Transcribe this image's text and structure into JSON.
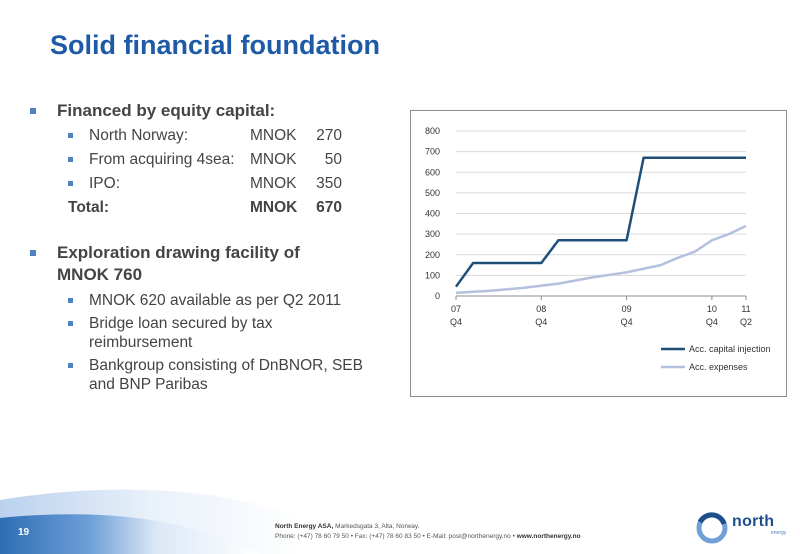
{
  "title": "Solid financial foundation",
  "bullets": {
    "equity_heading": "Financed by equity capital:",
    "equity_items": [
      {
        "label": "North Norway:",
        "unit": "MNOK",
        "value": "270"
      },
      {
        "label": "From acquiring 4sea:",
        "unit": "MNOK",
        "value": "50"
      },
      {
        "label": "IPO:",
        "unit": "MNOK",
        "value": "350"
      }
    ],
    "total": {
      "label": "Total:",
      "unit": "MNOK",
      "value": "670"
    },
    "facility_heading_line1": "Exploration drawing facility of",
    "facility_heading_line2": "MNOK 760",
    "facility_items": [
      {
        "line1": "MNOK 620 available as per Q2 2011",
        "line2": ""
      },
      {
        "line1": "Bridge loan secured by tax",
        "line2": "reimbursement"
      },
      {
        "line1": "Bankgroup consisting of DnBNOR, SEB",
        "line2": "and BNP Paribas"
      }
    ]
  },
  "chart_data": {
    "type": "line",
    "title": "",
    "xlabel": "",
    "ylabel": "",
    "ylim": [
      0,
      800
    ],
    "yticks": [
      0,
      100,
      200,
      300,
      400,
      500,
      600,
      700,
      800
    ],
    "xlim": [
      0,
      34
    ],
    "xticks": [
      {
        "x": 0,
        "year": "07",
        "quarter": "Q4"
      },
      {
        "x": 10,
        "year": "08",
        "quarter": "Q4"
      },
      {
        "x": 20,
        "year": "09",
        "quarter": "Q4"
      },
      {
        "x": 30,
        "year": "10",
        "quarter": "Q4"
      },
      {
        "x": 34,
        "year": "11",
        "quarter": "Q2"
      }
    ],
    "series": [
      {
        "name": "Acc. capital injection",
        "color": "#1f4e79",
        "points": [
          [
            0,
            45
          ],
          [
            2,
            160
          ],
          [
            10,
            160
          ],
          [
            12,
            270
          ],
          [
            20,
            270
          ],
          [
            22,
            670
          ],
          [
            34,
            670
          ]
        ]
      },
      {
        "name": "Acc. expenses",
        "color": "#b4c1de",
        "points": [
          [
            0,
            15
          ],
          [
            4,
            25
          ],
          [
            8,
            40
          ],
          [
            12,
            60
          ],
          [
            16,
            90
          ],
          [
            20,
            115
          ],
          [
            24,
            150
          ],
          [
            26,
            185
          ],
          [
            28,
            215
          ],
          [
            30,
            270
          ],
          [
            32,
            300
          ],
          [
            34,
            340
          ]
        ]
      }
    ],
    "legend_position": "bottom-right",
    "grid": true
  },
  "footer": {
    "page_number": "19",
    "company": "North Energy ASA,",
    "address": "Markedsgata 3, Alta, Norway.",
    "contact": "Phone: (+47) 78 60 79 50  • Fax: (+47) 78 60 83 50  • E-Mail: post@northenergy.no  •",
    "website": "www.northenergy.no",
    "logo_word": "north",
    "logo_sub": "energy"
  },
  "colors": {
    "title": "#1f5aa6",
    "bullet": "#4f81bd"
  }
}
